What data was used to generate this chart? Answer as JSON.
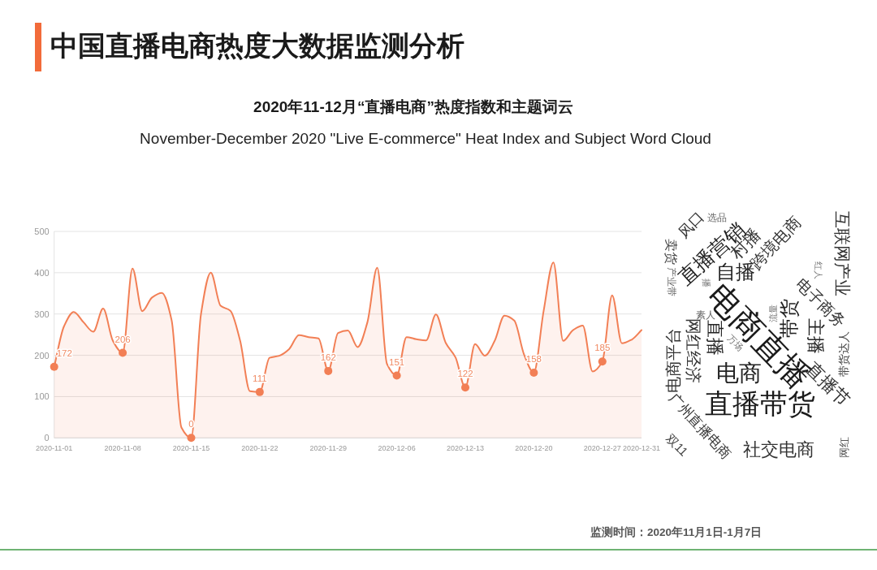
{
  "chart_data": [
    {
      "type": "line",
      "title": "中国直播电商热度大数据监测分析",
      "subtitle": "2020年11-12月“直播电商”热度指数和主题词云",
      "annotations": [
        "November-December 2020 \"Live E-commerce\" Heat Index and Subject Word Cloud",
        "监测时间：2020年11月1日-1月7日"
      ],
      "x": [
        "2020-11-01",
        "2020-11-02",
        "2020-11-03",
        "2020-11-04",
        "2020-11-05",
        "2020-11-06",
        "2020-11-07",
        "2020-11-08",
        "2020-11-09",
        "2020-11-10",
        "2020-11-11",
        "2020-11-12",
        "2020-11-13",
        "2020-11-14",
        "2020-11-15",
        "2020-11-16",
        "2020-11-17",
        "2020-11-18",
        "2020-11-19",
        "2020-11-20",
        "2020-11-21",
        "2020-11-22",
        "2020-11-23",
        "2020-11-24",
        "2020-11-25",
        "2020-11-26",
        "2020-11-27",
        "2020-11-28",
        "2020-11-29",
        "2020-11-30",
        "2020-12-01",
        "2020-12-02",
        "2020-12-03",
        "2020-12-04",
        "2020-12-05",
        "2020-12-06",
        "2020-12-07",
        "2020-12-08",
        "2020-12-09",
        "2020-12-10",
        "2020-12-11",
        "2020-12-12",
        "2020-12-13",
        "2020-12-14",
        "2020-12-15",
        "2020-12-16",
        "2020-12-17",
        "2020-12-18",
        "2020-12-19",
        "2020-12-20",
        "2020-12-21",
        "2020-12-22",
        "2020-12-23",
        "2020-12-24",
        "2020-12-25",
        "2020-12-26",
        "2020-12-27",
        "2020-12-28",
        "2020-12-29",
        "2020-12-30",
        "2020-12-31"
      ],
      "series": [
        {
          "type": "area",
          "color": "#f27f55",
          "values": [
            172,
            270,
            305,
            280,
            257,
            313,
            235,
            206,
            410,
            307,
            340,
            351,
            285,
            25,
            0,
            300,
            400,
            320,
            308,
            235,
            113,
            111,
            194,
            199,
            215,
            249,
            244,
            241,
            162,
            254,
            260,
            220,
            280,
            412,
            179,
            151,
            244,
            239,
            236,
            299,
            230,
            195,
            122,
            227,
            199,
            235,
            296,
            284,
            202,
            158,
            307,
            425,
            235,
            261,
            272,
            161,
            185,
            345,
            229,
            238,
            261
          ]
        },
        {
          "type": "scatter",
          "color": "#f27f55",
          "marker": "circle",
          "x": [
            "2020-11-01",
            "2020-11-08",
            "2020-11-15",
            "2020-11-22",
            "2020-11-29",
            "2020-12-06",
            "2020-12-13",
            "2020-12-20",
            "2020-12-27"
          ],
          "values": [
            172,
            206,
            0,
            111,
            162,
            151,
            122,
            158,
            185
          ],
          "value_labels": [
            "172",
            "206",
            "0",
            "111",
            "162",
            "151",
            "122",
            "158",
            "185"
          ]
        }
      ],
      "xlim": [
        "2020-11-01",
        "2020-12-31"
      ],
      "xticks": [
        "2020-11-01",
        "2020-11-08",
        "2020-11-15",
        "2020-11-22",
        "2020-11-29",
        "2020-12-06",
        "2020-12-13",
        "2020-12-20",
        "2020-12-27",
        "2020-12-31"
      ],
      "ylim": [
        0,
        500
      ],
      "yticks": [
        0,
        100,
        200,
        300,
        400,
        500
      ],
      "grid": "y"
    },
    {
      "type": "other",
      "annotations": [
        "电商直播",
        "直播带货",
        "电商",
        "直播营销",
        "跨境电商",
        "村播",
        "风口",
        "选品",
        "卖货",
        "产业带",
        "自播",
        "播",
        "素人",
        "互联网产业",
        "红人",
        "电子商务",
        "带货",
        "流量",
        "主播",
        "带货达人",
        "直播节",
        "电商平台",
        "网红经济",
        "直播",
        "万场",
        "广州直播电商",
        "双11",
        "社交电商",
        "网红"
      ]
    }
  ]
}
